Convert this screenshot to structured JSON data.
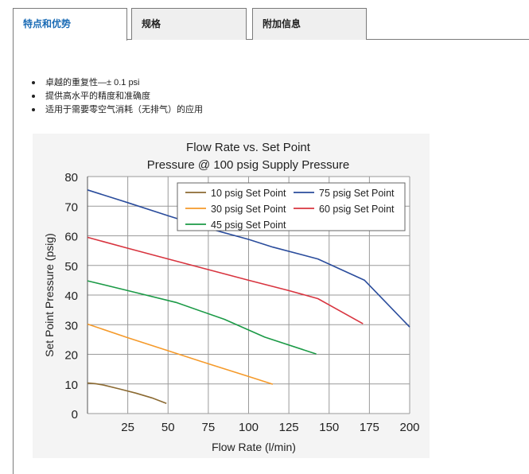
{
  "tabs": [
    {
      "label": "特点和优势",
      "active": true
    },
    {
      "label": "规格",
      "active": false
    },
    {
      "label": "附加信息",
      "active": false
    }
  ],
  "features": [
    "卓越的重复性—± 0.1 psi",
    "提供高水平的精度和准确度",
    "适用于需要零空气消耗（无排气）的应用"
  ],
  "colors": {
    "active_tab_text": "#1a6bb5",
    "chart_background": "#f4f4f4"
  },
  "chart_data": {
    "type": "line",
    "title_line1": "Flow Rate vs. Set Point",
    "title_line2": "Pressure @ 100 psig Supply Pressure",
    "xlabel": "Flow Rate (l/min)",
    "ylabel": "Set Point Pressure (psig)",
    "xlim": [
      0,
      200
    ],
    "ylim": [
      0,
      80
    ],
    "x_ticks": [
      25,
      50,
      75,
      100,
      125,
      150,
      175,
      200
    ],
    "y_ticks": [
      0,
      10,
      20,
      30,
      40,
      50,
      60,
      70,
      80
    ],
    "grid": true,
    "legend_position": "top-right",
    "series": [
      {
        "name": "10 psig Set Point",
        "color": "#8b6a32",
        "points": [
          [
            0,
            10.3
          ],
          [
            5,
            10.1
          ],
          [
            10,
            9.6
          ],
          [
            20,
            8.3
          ],
          [
            30,
            6.9
          ],
          [
            40,
            5.3
          ],
          [
            49,
            3.4
          ]
        ]
      },
      {
        "name": "30 psig Set Point",
        "color": "#f59a2a",
        "points": [
          [
            0,
            30.2
          ],
          [
            25,
            25.6
          ],
          [
            50,
            21.2
          ],
          [
            75,
            16.8
          ],
          [
            100,
            12.5
          ],
          [
            115,
            9.9
          ]
        ]
      },
      {
        "name": "45 psig Set Point",
        "color": "#1b9a46",
        "points": [
          [
            0,
            44.8
          ],
          [
            25,
            41.5
          ],
          [
            55,
            37.5
          ],
          [
            85,
            31.8
          ],
          [
            110,
            25.8
          ],
          [
            142,
            20.1
          ]
        ]
      },
      {
        "name": "75 psig Set Point",
        "color": "#2a4c9c",
        "points": [
          [
            0,
            75.5
          ],
          [
            25,
            71.2
          ],
          [
            50,
            66.8
          ],
          [
            75,
            62.5
          ],
          [
            100,
            58.8
          ],
          [
            115,
            56.2
          ],
          [
            143,
            52.2
          ],
          [
            172,
            45.0
          ],
          [
            200,
            29.2
          ]
        ]
      },
      {
        "name": "60 psig Set Point",
        "color": "#d8343f",
        "points": [
          [
            0,
            59.5
          ],
          [
            25,
            55.8
          ],
          [
            50,
            52.2
          ],
          [
            75,
            48.6
          ],
          [
            100,
            45.0
          ],
          [
            125,
            41.5
          ],
          [
            143,
            38.8
          ],
          [
            171,
            30.3
          ]
        ]
      }
    ],
    "legend_rows": [
      [
        "10 psig Set Point",
        "75 psig Set Point"
      ],
      [
        "30 psig Set Point",
        "60 psig Set Point"
      ],
      [
        "45 psig Set Point"
      ]
    ]
  }
}
